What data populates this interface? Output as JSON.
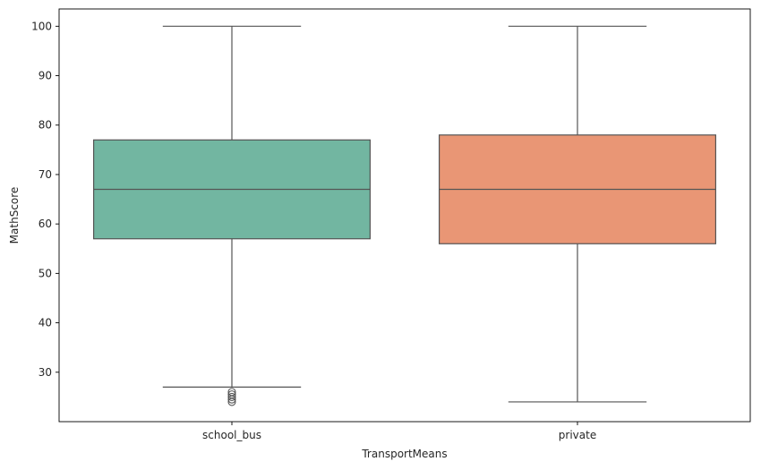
{
  "chart_data": {
    "type": "box",
    "xlabel": "TransportMeans",
    "ylabel": "MathScore",
    "ylim": [
      20,
      103.5
    ],
    "yticks": [
      30,
      40,
      50,
      60,
      70,
      80,
      90,
      100
    ],
    "grid": false,
    "categories": [
      "school_bus",
      "private"
    ],
    "boxes": [
      {
        "category": "school_bus",
        "whisker_low": 27,
        "q1": 57,
        "median": 67,
        "q3": 77,
        "whisker_high": 100,
        "outliers": [
          26,
          25.5,
          25,
          24.5,
          24
        ],
        "color": "#72B6A1"
      },
      {
        "category": "private",
        "whisker_low": 24,
        "q1": 56,
        "median": 67,
        "q3": 78,
        "whisker_high": 100,
        "outliers": [],
        "color": "#E99675"
      }
    ],
    "line_color": "#555555"
  }
}
